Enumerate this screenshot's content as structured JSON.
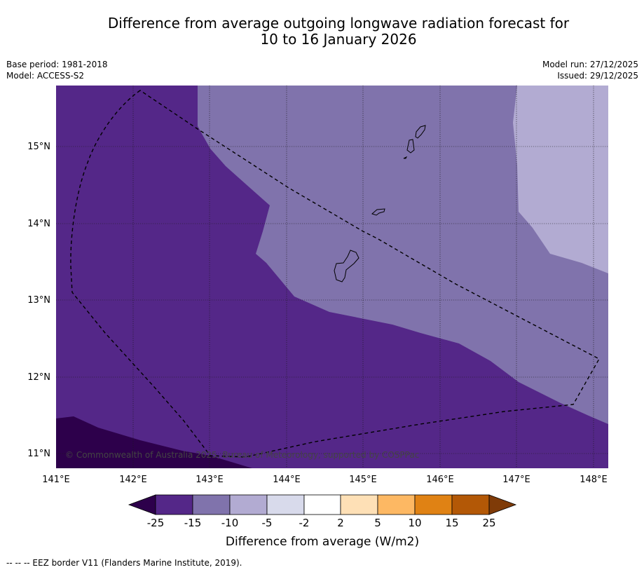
{
  "title": {
    "line1": "Difference from average outgoing longwave radiation forecast for",
    "line2": "10 to 16 January 2026"
  },
  "meta": {
    "base_period": "Base period: 1981-2018",
    "model": "Model: ACCESS-S2",
    "model_run": "Model run: 27/12/2025",
    "issued": "Issued: 29/12/2025"
  },
  "map": {
    "lon_labels": [
      "141°E",
      "142°E",
      "143°E",
      "144°E",
      "145°E",
      "146°E",
      "147°E",
      "148°E"
    ],
    "lat_labels": [
      "15°N",
      "14°N",
      "13°N",
      "12°N",
      "11°N"
    ],
    "copyright": "© Commonwealth of Australia 2025, Bureau of Meteorology, supported by COSPPac",
    "colors": {
      "c_m25_less": "#2d004b",
      "c_m25_m15": "#542788",
      "c_m15_m10": "#8073ac",
      "c_m10_m5": "#b2abd2",
      "c_m5_m2": "#d8daeb",
      "c_m2_2": "#ffffff",
      "c_2_5": "#fee0b6",
      "c_5_10": "#fdb863",
      "c_10_15": "#e08214",
      "c_15_25": "#b35806",
      "c_25_more": "#7f3b08"
    }
  },
  "colorbar": {
    "ticks": [
      "-25",
      "-15",
      "-10",
      "-5",
      "-2",
      "2",
      "5",
      "10",
      "15",
      "25"
    ],
    "label": "Difference from average (W/m2)"
  },
  "footnote": "--  --  -- EEZ border V11 (Flanders Marine Institute, 2019)."
}
